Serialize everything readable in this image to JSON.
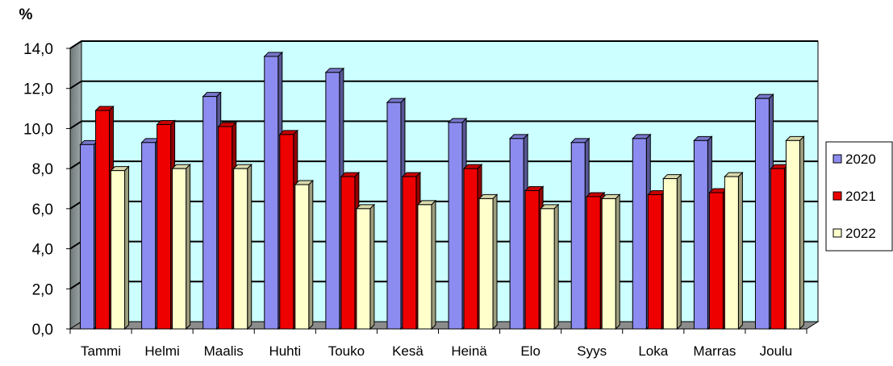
{
  "chart_data": {
    "type": "bar",
    "title": "",
    "unit_label": "%",
    "xlabel": "",
    "ylabel": "%",
    "ylim": [
      0,
      14
    ],
    "yticks": [
      "0,0",
      "2,0",
      "4,0",
      "6,0",
      "8,0",
      "10,0",
      "12,0",
      "14,0"
    ],
    "grid": true,
    "legend_position": "right",
    "categories": [
      "Tammi",
      "Helmi",
      "Maalis",
      "Huhti",
      "Touko",
      "Kesä",
      "Heinä",
      "Elo",
      "Syys",
      "Loka",
      "Marras",
      "Joulu"
    ],
    "series": [
      {
        "name": "2020",
        "color": "#8c8cf0",
        "values": [
          9.2,
          9.3,
          11.6,
          13.6,
          12.8,
          11.3,
          10.3,
          9.5,
          9.3,
          9.5,
          9.4,
          11.5
        ]
      },
      {
        "name": "2021",
        "color": "#ee0000",
        "values": [
          10.9,
          10.2,
          10.1,
          9.7,
          7.6,
          7.6,
          8.0,
          6.9,
          6.6,
          6.7,
          6.8,
          8.0
        ]
      },
      {
        "name": "2022",
        "color": "#ffffcc",
        "values": [
          7.9,
          8.0,
          8.0,
          7.2,
          6.0,
          6.2,
          6.5,
          6.0,
          6.5,
          7.5,
          7.6,
          9.4
        ]
      }
    ]
  }
}
